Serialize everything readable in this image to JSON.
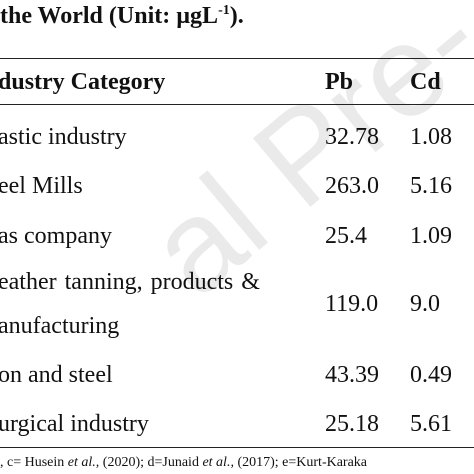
{
  "header": {
    "title": "the World (Unit: µgL",
    "title_sup": "-1",
    "title_end": ")."
  },
  "table": {
    "columns": [
      "dustry Category",
      "Pb",
      "Cd"
    ],
    "rows": [
      [
        "astic industry",
        "32.78",
        "1.08"
      ],
      [
        "eel Mills",
        "263.0",
        "5.16"
      ],
      [
        "as company",
        "25.4",
        "1.09"
      ],
      [
        [
          "eather  tanning,  products  &",
          "anufacturing"
        ],
        "119.0",
        "9.0"
      ],
      [
        "on and steel",
        "43.39",
        "0.49"
      ],
      [
        "urgical industry",
        "25.18",
        "5.61"
      ]
    ]
  },
  "footnote": [
    ", c= Husein ",
    "et al.,",
    " (2020); d=Junaid ",
    "et al.,",
    " (2017); e=Kurt-Karaka"
  ],
  "watermark": "al Pre-"
}
